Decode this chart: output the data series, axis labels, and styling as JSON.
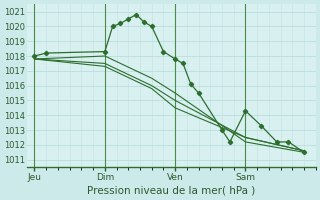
{
  "background_color": "#cceaea",
  "plot_bg_color": "#d8f0f0",
  "grid_color": "#b8dede",
  "vline_color": "#4a8a4a",
  "line_color": "#2d6e2d",
  "marker_color": "#2d6e2d",
  "xlabel": "Pression niveau de la mer( hPa )",
  "ylim": [
    1010.5,
    1021.5
  ],
  "yticks": [
    1011,
    1012,
    1013,
    1014,
    1015,
    1016,
    1017,
    1018,
    1019,
    1020,
    1021
  ],
  "xtick_labels": [
    "Jeu",
    "Dim",
    "Ven",
    "Sam"
  ],
  "xtick_positions": [
    0,
    36,
    72,
    108
  ],
  "vline_positions": [
    0,
    36,
    72,
    108
  ],
  "xlim": [
    -4,
    144
  ],
  "series": [
    {
      "x": [
        0,
        6,
        36,
        40,
        44,
        48,
        52,
        56,
        60,
        66,
        72,
        76,
        80,
        84,
        96,
        100,
        108,
        116,
        124,
        130,
        138
      ],
      "y": [
        1018.0,
        1018.2,
        1018.3,
        1020.0,
        1020.2,
        1020.5,
        1020.8,
        1020.3,
        1020.0,
        1018.3,
        1017.8,
        1017.5,
        1016.1,
        1015.5,
        1013.0,
        1012.2,
        1014.3,
        1013.3,
        1012.2,
        1012.2,
        1011.5
      ],
      "has_markers": true
    },
    {
      "x": [
        0,
        36,
        60,
        72,
        108,
        138
      ],
      "y": [
        1017.8,
        1018.0,
        1016.5,
        1015.5,
        1012.2,
        1011.5
      ],
      "has_markers": false
    },
    {
      "x": [
        0,
        36,
        60,
        72,
        108,
        138
      ],
      "y": [
        1017.8,
        1017.5,
        1016.0,
        1015.0,
        1012.5,
        1011.6
      ],
      "has_markers": false
    },
    {
      "x": [
        0,
        36,
        60,
        72,
        108,
        138
      ],
      "y": [
        1017.8,
        1017.3,
        1015.8,
        1014.5,
        1012.5,
        1011.6
      ],
      "has_markers": false
    }
  ],
  "axis_bottom_color": "#2d6e2d",
  "xlabel_fontsize": 7.5,
  "ytick_fontsize": 6,
  "xtick_fontsize": 6.5
}
